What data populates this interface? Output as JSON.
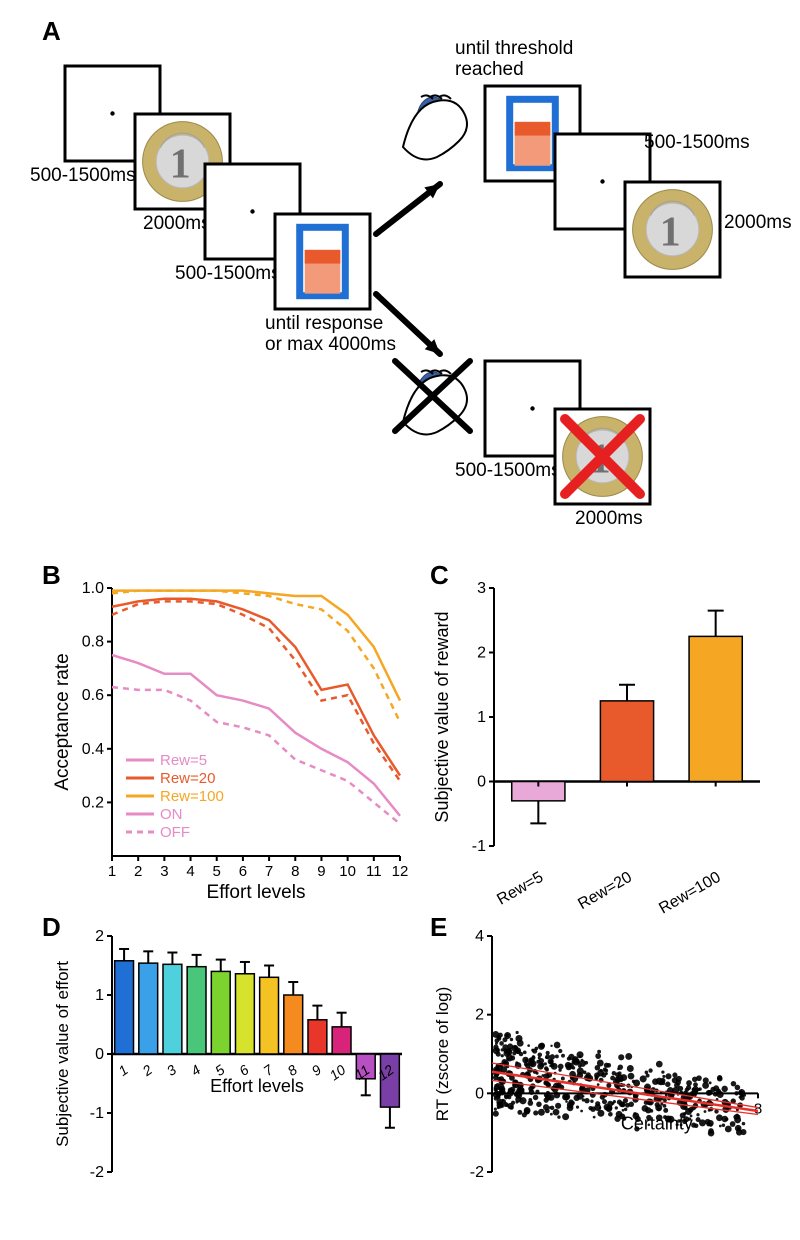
{
  "panelA": {
    "label": "A",
    "timings": {
      "fixation1": "500-1500ms",
      "reward1": "2000ms",
      "fixation2": "500-1500ms",
      "decision": "until response\nor max 4000ms",
      "effort": "until threshold\nreached",
      "fixation3_top": "500-1500ms",
      "reward2_top": "2000ms",
      "fixation3_bot": "500-1500ms",
      "reward2_bot": "2000ms"
    },
    "frame": {
      "stroke": "#000000",
      "stroke_width": 3,
      "fill": "#ffffff",
      "size": 95
    },
    "coin": {
      "rim": "#c9b26a",
      "inner": "#d8d8d8",
      "text_color": "#707070"
    },
    "effort_gauge": {
      "border": "#1f6fd4",
      "bg": "#ffffff",
      "fill1": "#f29a7a",
      "fill2": "#e85a2c",
      "target_fill": "#8fd98f"
    },
    "cross_x": "#e62020"
  },
  "panelB": {
    "label": "B",
    "xlabel": "Effort levels",
    "ylabel": "Acceptance rate",
    "xticks": [
      "1",
      "2",
      "3",
      "4",
      "5",
      "6",
      "7",
      "8",
      "9",
      "10",
      "11",
      "12"
    ],
    "yticks": [
      "0.2",
      "0.4",
      "0.6",
      "0.8",
      "1.0"
    ],
    "xlim": [
      1,
      12
    ],
    "ylim": [
      0.0,
      1.0
    ],
    "series": {
      "rew5_on": {
        "color": "#e68bc4",
        "dash": "none",
        "values": [
          0.75,
          0.72,
          0.68,
          0.68,
          0.6,
          0.58,
          0.55,
          0.46,
          0.4,
          0.35,
          0.27,
          0.15
        ]
      },
      "rew5_off": {
        "color": "#e68bc4",
        "dash": "6,5",
        "values": [
          0.63,
          0.62,
          0.62,
          0.58,
          0.5,
          0.48,
          0.45,
          0.36,
          0.32,
          0.28,
          0.2,
          0.12
        ]
      },
      "rew20_on": {
        "color": "#e85a2c",
        "dash": "none",
        "values": [
          0.93,
          0.95,
          0.96,
          0.96,
          0.95,
          0.92,
          0.88,
          0.78,
          0.62,
          0.64,
          0.45,
          0.3
        ]
      },
      "rew20_off": {
        "color": "#e85a2c",
        "dash": "6,5",
        "values": [
          0.9,
          0.94,
          0.95,
          0.95,
          0.94,
          0.9,
          0.85,
          0.73,
          0.58,
          0.6,
          0.42,
          0.28
        ]
      },
      "rew100_on": {
        "color": "#f5a623",
        "dash": "none",
        "values": [
          0.99,
          0.99,
          0.99,
          0.99,
          0.99,
          0.99,
          0.98,
          0.97,
          0.97,
          0.9,
          0.78,
          0.58
        ]
      },
      "rew100_off": {
        "color": "#f5a623",
        "dash": "6,5",
        "values": [
          0.98,
          0.99,
          0.99,
          0.99,
          0.99,
          0.98,
          0.97,
          0.94,
          0.92,
          0.84,
          0.7,
          0.5
        ]
      }
    },
    "legend": [
      {
        "label": "Rew=5",
        "color": "#e68bc4"
      },
      {
        "label": "Rew=20",
        "color": "#e85a2c"
      },
      {
        "label": "Rew=100",
        "color": "#f5a623"
      },
      {
        "label": "ON",
        "color": "#e68bc4",
        "dash": "none"
      },
      {
        "label": "OFF",
        "color": "#e68bc4",
        "dash": "6,5"
      }
    ],
    "line_width": 2.5
  },
  "panelC": {
    "label": "C",
    "xlabel": "",
    "ylabel": "Subjective value of reward",
    "categories": [
      "Rew=5",
      "Rew=20",
      "Rew=100"
    ],
    "values": [
      -0.3,
      1.25,
      2.25
    ],
    "errors": [
      0.35,
      0.25,
      0.4
    ],
    "colors": [
      "#e8a8d8",
      "#e85a2c",
      "#f5a623"
    ],
    "ylim": [
      -1,
      3
    ],
    "yticks": [
      "-1",
      "0",
      "1",
      "2",
      "3"
    ],
    "bar_width": 0.6,
    "bar_stroke": "#000000"
  },
  "panelD": {
    "label": "D",
    "xlabel": "Effort levels",
    "ylabel": "Subjective value of effort",
    "categories": [
      "1",
      "2",
      "3",
      "4",
      "5",
      "6",
      "7",
      "8",
      "9",
      "10",
      "11",
      "12"
    ],
    "values": [
      1.58,
      1.54,
      1.52,
      1.48,
      1.4,
      1.36,
      1.3,
      1.0,
      0.58,
      0.46,
      -0.42,
      -0.9
    ],
    "errors": [
      0.2,
      0.2,
      0.2,
      0.2,
      0.2,
      0.2,
      0.2,
      0.22,
      0.24,
      0.24,
      0.28,
      0.35
    ],
    "colors": [
      "#1f6fd4",
      "#3aa0e8",
      "#4fd0dd",
      "#49c67a",
      "#7dd32e",
      "#d6e22b",
      "#f5c223",
      "#f58a1f",
      "#e8362a",
      "#d8237a",
      "#b84fc2",
      "#7a3fa6"
    ],
    "ylim": [
      -2,
      2
    ],
    "yticks": [
      "-2",
      "-1",
      "0",
      "1",
      "2"
    ],
    "bar_stroke": "#000000"
  },
  "panelE": {
    "label": "E",
    "xlabel": "Certainty",
    "ylabel": "RT (zscore of log)",
    "xlim": [
      0,
      8
    ],
    "ylim": [
      -2,
      4
    ],
    "yticks": [
      "-2",
      "0",
      "2",
      "4"
    ],
    "xticks": [
      "8"
    ],
    "fit": {
      "color": "#e8302a",
      "width": 2,
      "y_at_0": 0.55,
      "y_at_8": -0.45,
      "ci": 0.22
    },
    "point_color": "#000000"
  },
  "global": {
    "text_color": "#000000"
  }
}
